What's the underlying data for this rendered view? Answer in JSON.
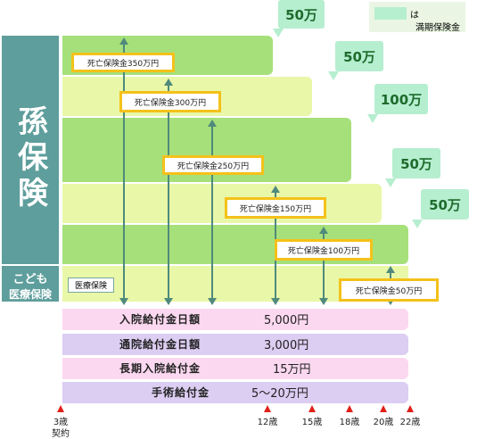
{
  "legend": {
    "marker": "は",
    "text": "満期保険金"
  },
  "side": {
    "main": "孫保険",
    "sub_line1": "こども",
    "sub_line2": "医療保険"
  },
  "medical_label": "医療保険",
  "maturity": [
    "50万",
    "50万",
    "100万",
    "50万",
    "50万"
  ],
  "death": [
    "死亡保険金350万円",
    "死亡保険金300万円",
    "死亡保険金250万円",
    "死亡保険金150万円",
    "死亡保険金100万円",
    "死亡保険金50万円"
  ],
  "benefits": [
    {
      "label": "入院給付金日額",
      "value": "5,000円"
    },
    {
      "label": "通院給付金日額",
      "value": "3,000円"
    },
    {
      "label": "長期入院給付金",
      "value": "15万円"
    },
    {
      "label": "手術給付金",
      "value": "5～20万円"
    }
  ],
  "ages": [
    "3歳",
    "12歳",
    "15歳",
    "18歳",
    "20歳",
    "22歳"
  ],
  "contract": "契約",
  "colors": {
    "band": "#a6e07a",
    "band_light": "#e9f7a8",
    "side": "#5e9e9c",
    "bubble": "#b6eed0",
    "frame": "#f4c11a",
    "benefit_pink": "#fbd8f0",
    "benefit_purple": "#dccdf2",
    "tick": "#e0201a"
  }
}
